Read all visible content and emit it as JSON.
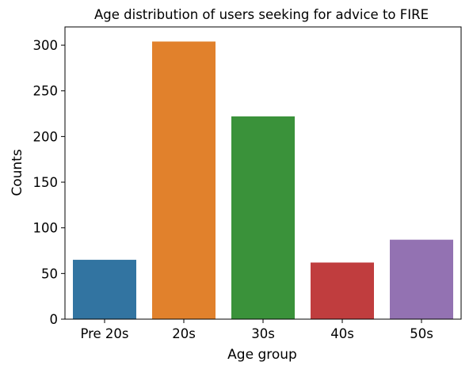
{
  "chart_data": {
    "type": "bar",
    "title": "Age distribution of users seeking for advice to FIRE",
    "xlabel": "Age group",
    "ylabel": "Counts",
    "categories": [
      "Pre 20s",
      "20s",
      "30s",
      "40s",
      "50s"
    ],
    "values": [
      65,
      304,
      222,
      62,
      87
    ],
    "colors": [
      "#3274a1",
      "#e1812c",
      "#3a923a",
      "#c03d3e",
      "#9372b2"
    ],
    "ylim": [
      0,
      320
    ],
    "yticks": [
      "0",
      "50",
      "100",
      "150",
      "200",
      "250",
      "300"
    ],
    "grid": false,
    "legend": "none"
  }
}
